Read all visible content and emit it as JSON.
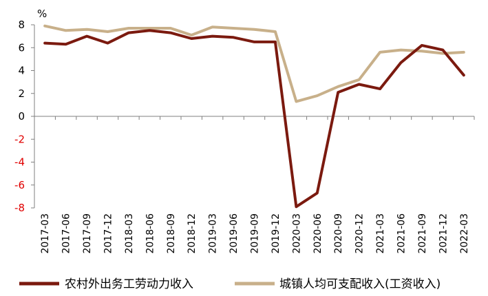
{
  "chart_data": {
    "type": "line",
    "unit": "%",
    "categories": [
      "2017-03",
      "2017-06",
      "2017-09",
      "2017-12",
      "2018-03",
      "2018-06",
      "2018-09",
      "2018-12",
      "2019-03",
      "2019-06",
      "2019-09",
      "2019-12",
      "2020-03",
      "2020-06",
      "2020-09",
      "2020-12",
      "2021-03",
      "2021-06",
      "2021-09",
      "2021-12",
      "2022-03"
    ],
    "ylim": [
      -8,
      8
    ],
    "yticks": [
      "8",
      "6",
      "4",
      "2",
      "0",
      "-2",
      "-4",
      "-6",
      "-8"
    ],
    "ytick_values": [
      8,
      6,
      4,
      2,
      0,
      -2,
      -4,
      -6,
      -8
    ],
    "grid": false,
    "legend_position": "bottom",
    "series": [
      {
        "name": "农村外出务工劳动力收入",
        "color": "#7b1a0f",
        "values": [
          6.4,
          6.3,
          7.0,
          6.4,
          7.3,
          7.5,
          7.3,
          6.8,
          7.0,
          6.9,
          6.5,
          6.5,
          -7.9,
          -6.7,
          2.1,
          2.8,
          2.4,
          4.7,
          6.2,
          5.8,
          3.6
        ]
      },
      {
        "name": "城镇人均可支配收入(工资收入)",
        "color": "#c8b08a",
        "values": [
          7.9,
          7.5,
          7.6,
          7.4,
          7.7,
          7.7,
          7.7,
          7.1,
          7.8,
          7.7,
          7.6,
          7.4,
          1.3,
          1.8,
          2.6,
          3.2,
          5.6,
          5.8,
          5.7,
          5.5,
          5.6
        ]
      }
    ]
  }
}
